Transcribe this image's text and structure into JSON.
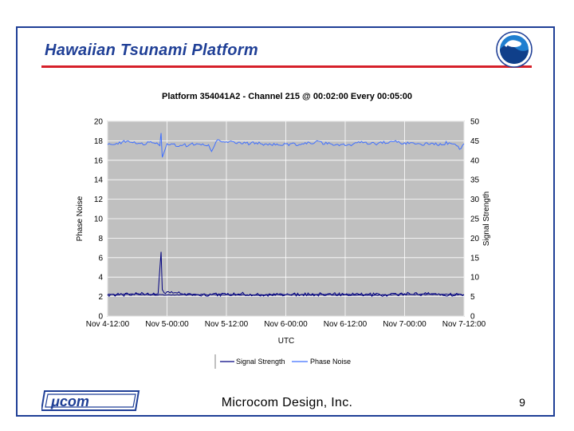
{
  "slide": {
    "title": "Hawaiian Tsunami Platform",
    "footer_company": "Microcom Design, Inc.",
    "page_number": "9",
    "colors": {
      "title": "#1f3f96",
      "rule": "#d6202a",
      "frame": "#1f3f96"
    },
    "logos": {
      "top_right": "noaa-logo",
      "bottom_left": "microcom-logo"
    }
  },
  "chart_data": {
    "type": "line",
    "title": "Platform 354041A2 - Channel 215 @ 00:02:00 Every 00:05:00",
    "xlabel": "UTC",
    "ylabel_left": "Phase Noise",
    "ylabel_right": "Signal Strength",
    "x_categories": [
      "Nov 4-12:00",
      "Nov 5-00:00",
      "Nov 5-12:00",
      "Nov 6-00:00",
      "Nov 6-12:00",
      "Nov 7-00:00",
      "Nov 7-12:00"
    ],
    "y_left": {
      "range": [
        0,
        20
      ],
      "ticks": [
        "0",
        "2",
        "4",
        "6",
        "8",
        "10",
        "12",
        "14",
        "16",
        "18",
        "20"
      ]
    },
    "y_right": {
      "range": [
        0,
        50
      ],
      "ticks": [
        "0",
        "5",
        "10",
        "15",
        "20",
        "25",
        "30",
        "35",
        "40",
        "45",
        "50"
      ]
    },
    "grid": true,
    "plot_background": "#c0c0c0",
    "legend_position": "bottom",
    "legend": [
      "Signal Strength",
      "Phase Noise"
    ],
    "series": [
      {
        "name": "Signal Strength",
        "axis": "right",
        "color": "#000080",
        "x": [
          0,
          0.5,
          1,
          1.5,
          2,
          2.5,
          3,
          3.5,
          4,
          4.5,
          5,
          5.5,
          6
        ],
        "y": [
          5.5,
          5.6,
          5.4,
          5.5,
          5.5,
          5.4,
          5.5,
          5.5,
          5.5,
          5.4,
          5.5,
          5.6,
          5.5
        ]
      },
      {
        "name": "Phase Noise",
        "axis": "left",
        "color": "#3f6fff",
        "x": [
          0,
          0.25,
          0.5,
          0.75,
          0.88,
          0.9,
          0.92,
          1.0,
          1.25,
          1.5,
          1.7,
          1.75,
          1.85,
          2.0,
          2.25,
          2.5,
          2.75,
          3.0,
          3.25,
          3.5,
          3.75,
          4.0,
          4.25,
          4.5,
          4.75,
          5.0,
          5.25,
          5.5,
          5.75,
          5.95,
          6.0
        ],
        "y": [
          17.6,
          17.9,
          17.7,
          17.8,
          17.5,
          18.8,
          16.3,
          17.7,
          17.5,
          17.7,
          17.6,
          16.9,
          18.1,
          17.9,
          17.7,
          17.8,
          17.6,
          17.7,
          17.6,
          17.9,
          17.7,
          17.5,
          17.8,
          17.7,
          17.9,
          17.8,
          17.7,
          17.6,
          17.8,
          17.2,
          17.7
        ]
      },
      {
        "name": "Phase Noise",
        "axis": "left",
        "color": "#000080",
        "x": [
          0,
          0.25,
          0.5,
          0.75,
          0.85,
          0.9,
          0.92,
          0.95,
          1.0,
          1.25,
          1.5,
          1.75,
          2.0,
          2.25,
          2.5,
          2.75,
          3.0,
          3.25,
          3.5,
          3.75,
          4.0,
          4.25,
          4.5,
          4.75,
          5.0,
          5.25,
          5.5,
          5.75,
          6.0
        ],
        "y": [
          2.2,
          2.2,
          2.3,
          2.2,
          2.3,
          6.6,
          2.7,
          2.4,
          2.5,
          2.3,
          2.2,
          2.2,
          2.2,
          2.3,
          2.2,
          2.2,
          2.2,
          2.2,
          2.2,
          2.3,
          2.2,
          2.2,
          2.2,
          2.2,
          2.3,
          2.2,
          2.3,
          2.2,
          2.2
        ]
      }
    ]
  }
}
